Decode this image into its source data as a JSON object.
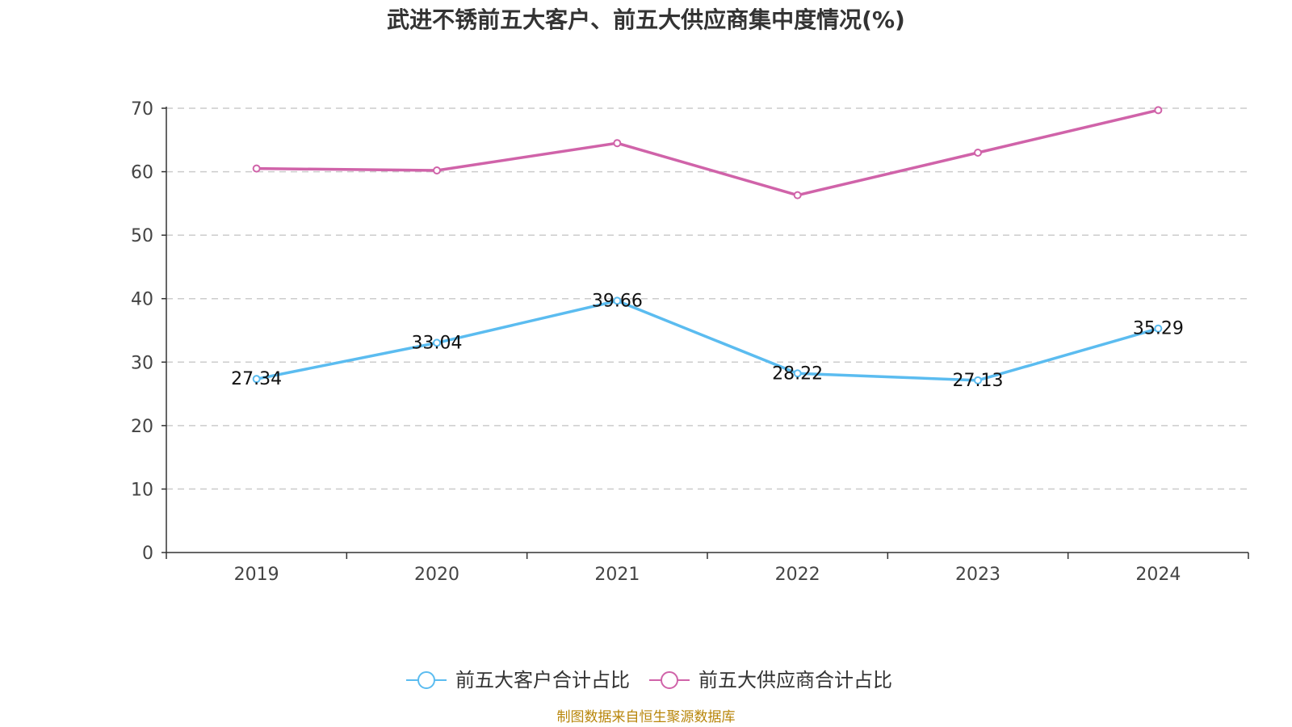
{
  "chart_data": {
    "type": "line",
    "title": "武进不锈前五大客户、前五大供应商集中度情况(%)",
    "categories": [
      "2019",
      "2020",
      "2021",
      "2022",
      "2023",
      "2024"
    ],
    "ylim": [
      0,
      70
    ],
    "yticks": [
      "0",
      "10",
      "20",
      "30",
      "40",
      "50",
      "60",
      "70"
    ],
    "grid": "dashed horizontal",
    "legend_position": "bottom-center",
    "series": [
      {
        "name": "前五大客户合计占比",
        "color": "#5bbcf0",
        "values": [
          27.34,
          33.04,
          39.66,
          28.22,
          27.13,
          35.29
        ],
        "labels": [
          "27.34",
          "33.04",
          "39.66",
          "28.22",
          "27.13",
          "35.29"
        ],
        "show_labels": true
      },
      {
        "name": "前五大供应商合计占比",
        "color": "#d063a9",
        "values": [
          60.5,
          60.2,
          64.5,
          56.3,
          63.0,
          69.7
        ],
        "show_labels": false
      }
    ]
  },
  "footer": {
    "source": "制图数据来自恒生聚源数据库"
  }
}
